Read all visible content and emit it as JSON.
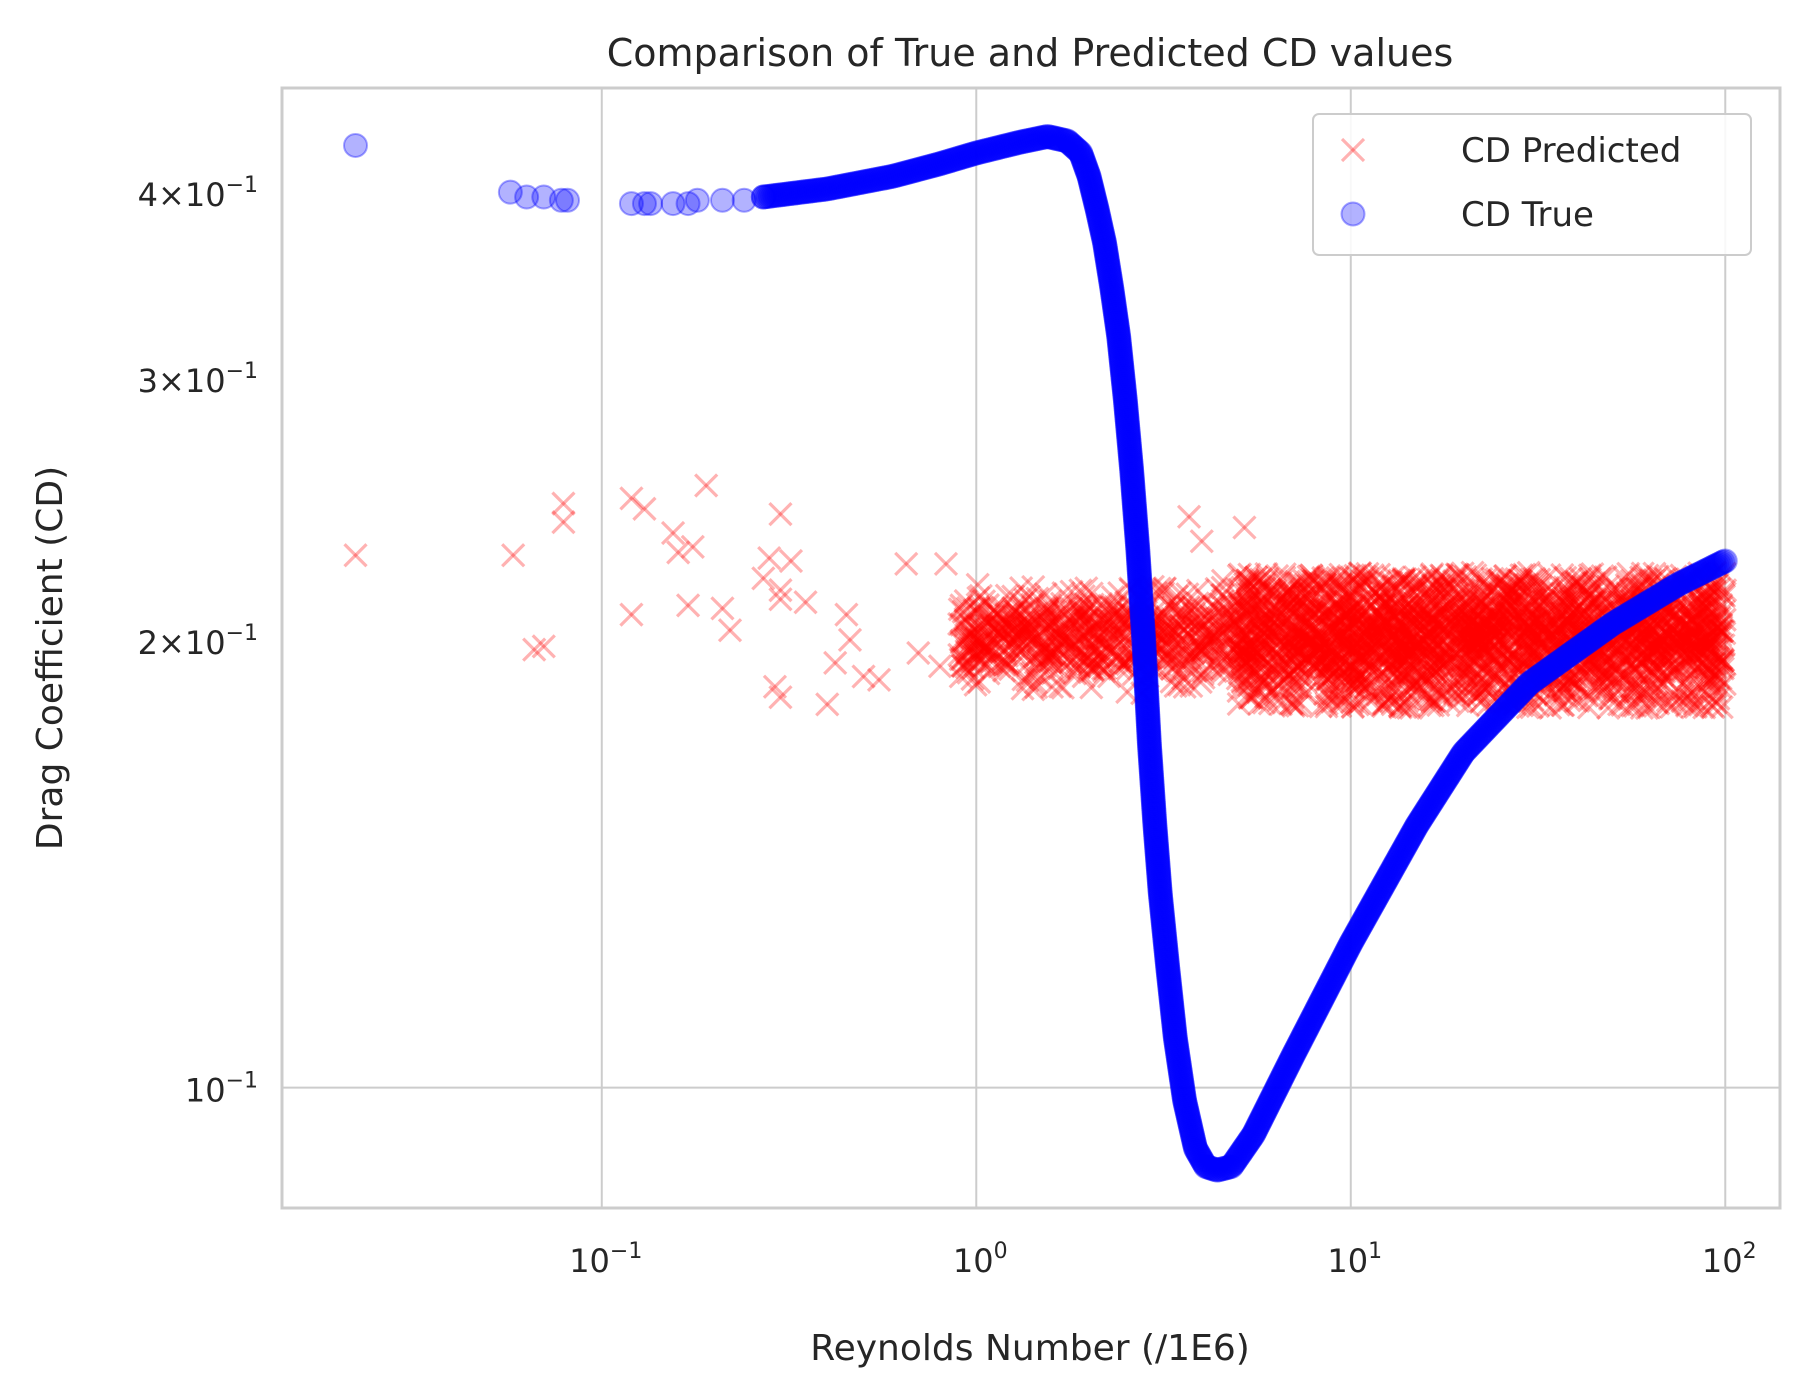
{
  "chart_data": {
    "type": "scatter",
    "title": "Comparison of True and Predicted CD values",
    "xlabel": "Reynolds Number (/1E6)",
    "ylabel": "Drag Coefficient (CD)",
    "xscale": "log",
    "yscale": "log",
    "xlim": [
      0.014,
      140
    ],
    "ylim": [
      0.083,
      0.47
    ],
    "grid": true,
    "legend_position": "top-right",
    "x_ticks": [
      {
        "value": 0.1,
        "base": "10",
        "exp": "−1"
      },
      {
        "value": 1,
        "base": "10",
        "exp": "0"
      },
      {
        "value": 10,
        "base": "10",
        "exp": "1"
      },
      {
        "value": 100,
        "base": "10",
        "exp": "2"
      }
    ],
    "y_ticks": [
      {
        "value": 0.1,
        "base": "10",
        "exp": "−1"
      },
      {
        "value": 0.2,
        "base": "2×10",
        "exp": "−1"
      },
      {
        "value": 0.3,
        "base": "3×10",
        "exp": "−1"
      },
      {
        "value": 0.4,
        "base": "4×10",
        "exp": "−1"
      }
    ],
    "series": [
      {
        "name": "CD Predicted",
        "marker": "x",
        "color": "#ff0000",
        "alpha": 0.3,
        "points": [
          [
            0.022,
            0.228
          ],
          [
            0.058,
            0.228
          ],
          [
            0.066,
            0.197
          ],
          [
            0.07,
            0.198
          ],
          [
            0.079,
            0.24
          ],
          [
            0.079,
            0.247
          ],
          [
            0.12,
            0.249
          ],
          [
            0.12,
            0.208
          ],
          [
            0.13,
            0.245
          ],
          [
            0.155,
            0.236
          ],
          [
            0.16,
            0.229
          ],
          [
            0.175,
            0.231
          ],
          [
            0.17,
            0.211
          ],
          [
            0.19,
            0.254
          ],
          [
            0.21,
            0.21
          ],
          [
            0.22,
            0.203
          ],
          [
            0.27,
            0.22
          ],
          [
            0.28,
            0.227
          ],
          [
            0.3,
            0.216
          ],
          [
            0.3,
            0.213
          ],
          [
            0.29,
            0.186
          ],
          [
            0.3,
            0.183
          ],
          [
            0.3,
            0.243
          ],
          [
            0.32,
            0.226
          ],
          [
            0.35,
            0.212
          ],
          [
            0.4,
            0.181
          ],
          [
            0.42,
            0.193
          ],
          [
            0.45,
            0.208
          ],
          [
            0.46,
            0.2
          ],
          [
            0.5,
            0.189
          ],
          [
            0.55,
            0.188
          ],
          [
            0.65,
            0.225
          ],
          [
            0.7,
            0.196
          ],
          [
            0.8,
            0.192
          ],
          [
            0.83,
            0.225
          ],
          [
            0.9,
            0.205
          ],
          [
            3.7,
            0.242
          ],
          [
            4.0,
            0.233
          ],
          [
            5.2,
            0.238
          ]
        ],
        "band": {
          "x_from": 0.9,
          "x_to": 100,
          "n": 2000,
          "dense_from": 5,
          "dense_n": 1500,
          "center": 0.2,
          "spread_low": 0.18,
          "spread_high": 0.222
        }
      },
      {
        "name": "CD True",
        "marker": "o",
        "color": "#0000ff",
        "alpha": 0.3,
        "points": [
          [
            0.022,
            0.43
          ],
          [
            0.057,
            0.4
          ],
          [
            0.063,
            0.397
          ],
          [
            0.07,
            0.397
          ],
          [
            0.078,
            0.395
          ],
          [
            0.081,
            0.395
          ],
          [
            0.12,
            0.393
          ],
          [
            0.13,
            0.393
          ],
          [
            0.135,
            0.393
          ],
          [
            0.155,
            0.393
          ],
          [
            0.17,
            0.393
          ],
          [
            0.18,
            0.395
          ],
          [
            0.21,
            0.395
          ],
          [
            0.24,
            0.395
          ],
          [
            0.27,
            0.397
          ]
        ],
        "curve": [
          [
            0.27,
            0.397
          ],
          [
            0.4,
            0.402
          ],
          [
            0.6,
            0.41
          ],
          [
            0.8,
            0.418
          ],
          [
            1.0,
            0.425
          ],
          [
            1.3,
            0.432
          ],
          [
            1.55,
            0.436
          ],
          [
            1.75,
            0.433
          ],
          [
            1.9,
            0.425
          ],
          [
            2.0,
            0.41
          ],
          [
            2.1,
            0.39
          ],
          [
            2.2,
            0.37
          ],
          [
            2.3,
            0.345
          ],
          [
            2.4,
            0.32
          ],
          [
            2.5,
            0.29
          ],
          [
            2.6,
            0.26
          ],
          [
            2.7,
            0.23
          ],
          [
            2.8,
            0.2
          ],
          [
            2.9,
            0.17
          ],
          [
            3.0,
            0.15
          ],
          [
            3.1,
            0.135
          ],
          [
            3.25,
            0.12
          ],
          [
            3.4,
            0.108
          ],
          [
            3.6,
            0.098
          ],
          [
            3.85,
            0.091
          ],
          [
            4.1,
            0.0885
          ],
          [
            4.4,
            0.088
          ],
          [
            4.8,
            0.0885
          ],
          [
            5.5,
            0.093
          ],
          [
            7,
            0.105
          ],
          [
            10,
            0.125
          ],
          [
            15,
            0.15
          ],
          [
            20,
            0.168
          ],
          [
            30,
            0.187
          ],
          [
            50,
            0.205
          ],
          [
            75,
            0.218
          ],
          [
            100,
            0.226
          ]
        ]
      }
    ]
  }
}
